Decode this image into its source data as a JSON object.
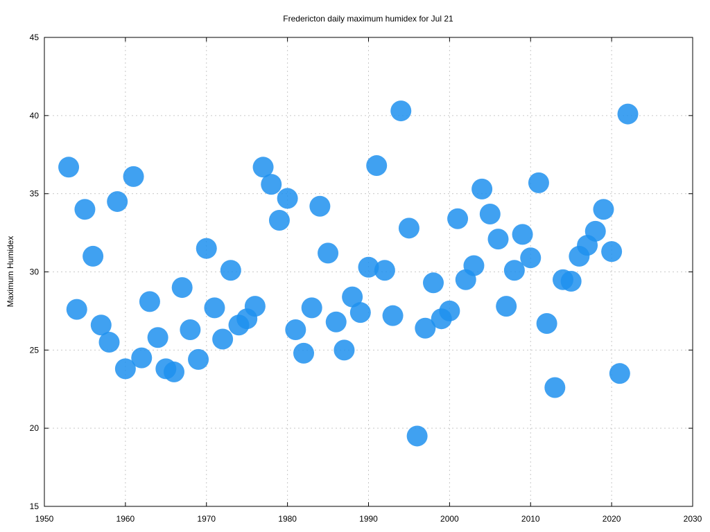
{
  "chart_data": {
    "type": "scatter",
    "title": "Fredericton daily maximum humidex for Jul 21",
    "xlabel": "",
    "ylabel": "Maximum Humidex",
    "xlim": [
      1950,
      2030
    ],
    "ylim": [
      15,
      45
    ],
    "x_ticks": [
      1950,
      1960,
      1970,
      1980,
      1990,
      2000,
      2010,
      2020,
      2030
    ],
    "y_ticks": [
      15,
      20,
      25,
      30,
      35,
      40,
      45
    ],
    "grid": true,
    "marker_color": "#1E90EE",
    "series": [
      {
        "x": [
          1953,
          1954,
          1955,
          1956,
          1957,
          1958,
          1959,
          1960,
          1961,
          1962,
          1963,
          1964,
          1965,
          1966,
          1967,
          1968,
          1969,
          1970,
          1971,
          1972,
          1973,
          1974,
          1975,
          1976,
          1977,
          1978,
          1979,
          1980,
          1981,
          1982,
          1983,
          1984,
          1985,
          1986,
          1987,
          1988,
          1989,
          1990,
          1991,
          1992,
          1993,
          1994,
          1995,
          1996,
          1997,
          1998,
          1999,
          2000,
          2001,
          2002,
          2003,
          2004,
          2005,
          2006,
          2007,
          2008,
          2009,
          2010,
          2011,
          2012,
          2013,
          2014,
          2015,
          2016,
          2017,
          2018,
          2019,
          2020,
          2021,
          2022
        ],
        "y": [
          36.7,
          27.6,
          34.0,
          31.0,
          26.6,
          25.5,
          34.5,
          23.8,
          36.1,
          24.5,
          28.1,
          25.8,
          23.8,
          23.6,
          29.0,
          26.3,
          24.4,
          31.5,
          27.7,
          25.7,
          30.1,
          26.6,
          27.0,
          27.8,
          36.7,
          35.6,
          33.3,
          34.7,
          26.3,
          24.8,
          27.7,
          34.2,
          31.2,
          26.8,
          25.0,
          28.4,
          27.4,
          30.3,
          36.8,
          30.1,
          27.2,
          40.3,
          32.8,
          19.5,
          26.4,
          29.3,
          27.0,
          27.5,
          33.4,
          29.5,
          30.4,
          35.3,
          33.7,
          32.1,
          27.8,
          30.1,
          32.4,
          30.9,
          35.7,
          26.7,
          22.6,
          29.5,
          29.4,
          31.0,
          31.7,
          32.6,
          34.0,
          31.3,
          23.5,
          40.1
        ]
      }
    ]
  }
}
